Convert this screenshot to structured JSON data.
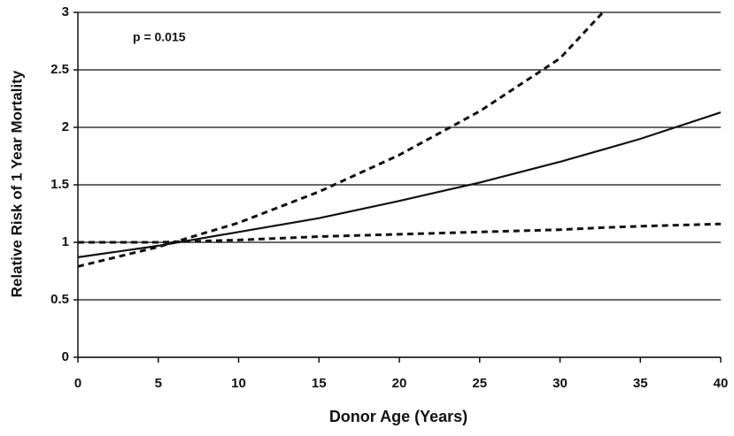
{
  "chart_data": {
    "type": "line",
    "xlabel": "Donor Age (Years)",
    "ylabel": "Relative Risk of 1 Year Mortality",
    "annotation": "p = 0.015",
    "x": [
      0,
      5,
      10,
      15,
      20,
      25,
      30,
      33,
      35,
      40
    ],
    "series": [
      {
        "color": "#111111",
        "style": "solid",
        "values": [
          0.87,
          0.97,
          1.09,
          1.21,
          1.36,
          1.52,
          1.7,
          1.82,
          1.9,
          2.13
        ]
      },
      {
        "color": "#111111",
        "style": "dashed",
        "values": [
          0.79,
          0.96,
          1.17,
          1.44,
          1.76,
          2.14,
          2.6,
          3.05,
          null,
          null
        ]
      },
      {
        "color": "#111111",
        "style": "dashed",
        "values": [
          1.0,
          1.0,
          1.02,
          1.05,
          1.07,
          1.09,
          1.11,
          1.13,
          1.14,
          1.16
        ]
      }
    ],
    "xlim": [
      0,
      40
    ],
    "xticks": [
      0,
      5,
      10,
      15,
      20,
      25,
      30,
      35,
      40
    ],
    "ylim": [
      0,
      3
    ],
    "yticks": [
      0,
      0.5,
      1,
      1.5,
      2,
      2.5,
      3
    ],
    "grid": true
  }
}
